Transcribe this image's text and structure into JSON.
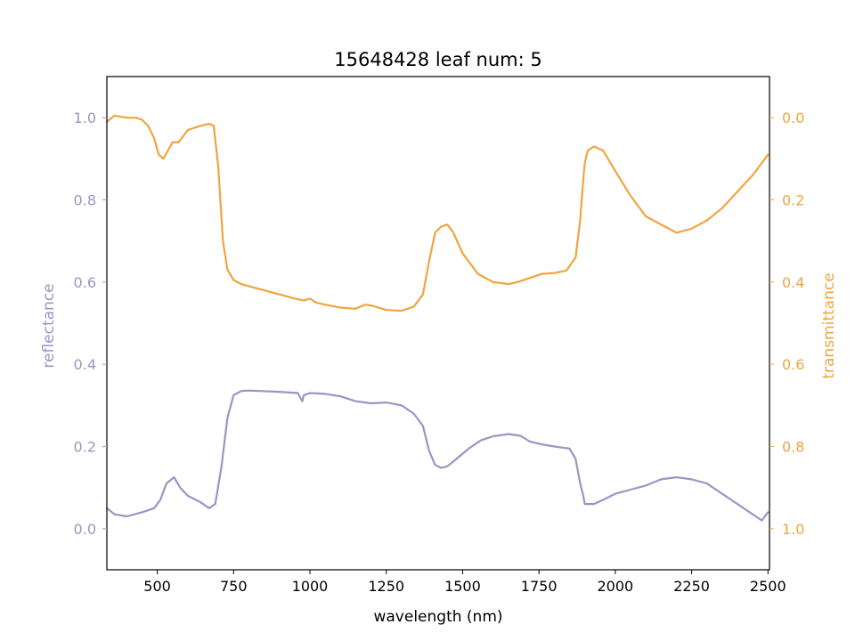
{
  "chart_data": {
    "type": "line",
    "title": "15648428 leaf num: 5",
    "xlabel": "wavelength (nm)",
    "ylabel_left": "reflectance",
    "ylabel_right": "transmittance",
    "xlim": [
      335,
      2505
    ],
    "ylim_left": [
      -0.1,
      1.1
    ],
    "ylim_right": [
      1.1,
      -0.1
    ],
    "right_axis_inverted": true,
    "grid": false,
    "x_ticks": [
      500,
      750,
      1000,
      1250,
      1500,
      1750,
      2000,
      2250,
      2500
    ],
    "x_tick_labels": [
      "500",
      "750",
      "1000",
      "1250",
      "1500",
      "1750",
      "2000",
      "2250",
      "2500"
    ],
    "y_left_ticks": [
      0.0,
      0.2,
      0.4,
      0.6,
      0.8,
      1.0
    ],
    "y_left_tick_labels": [
      "0.0",
      "0.2",
      "0.4",
      "0.6",
      "0.8",
      "1.0"
    ],
    "y_right_ticks": [
      0.0,
      0.2,
      0.4,
      0.6,
      0.8,
      1.0
    ],
    "y_right_tick_labels": [
      "0.0",
      "0.2",
      "0.4",
      "0.6",
      "0.8",
      "1.0"
    ],
    "colors": {
      "reflectance": "#9b94c6",
      "transmittance": "#f0a43f"
    },
    "series": [
      {
        "axis": "left",
        "x": [
          335,
          360,
          400,
          450,
          490,
          510,
          530,
          555,
          575,
          600,
          640,
          670,
          690,
          710,
          730,
          750,
          775,
          800,
          900,
          960,
          975,
          980,
          1000,
          1050,
          1100,
          1150,
          1200,
          1250,
          1300,
          1340,
          1370,
          1390,
          1410,
          1430,
          1450,
          1480,
          1520,
          1560,
          1600,
          1650,
          1690,
          1720,
          1760,
          1800,
          1850,
          1870,
          1885,
          1895,
          1900,
          1930,
          1960,
          2000,
          2050,
          2100,
          2150,
          2200,
          2250,
          2300,
          2340,
          2380,
          2420,
          2460,
          2480,
          2500
        ],
        "values": [
          0.05,
          0.035,
          0.03,
          0.04,
          0.05,
          0.07,
          0.11,
          0.125,
          0.1,
          0.08,
          0.065,
          0.05,
          0.06,
          0.15,
          0.27,
          0.325,
          0.335,
          0.336,
          0.333,
          0.33,
          0.31,
          0.325,
          0.33,
          0.328,
          0.322,
          0.31,
          0.305,
          0.307,
          0.3,
          0.28,
          0.25,
          0.19,
          0.155,
          0.148,
          0.152,
          0.17,
          0.195,
          0.215,
          0.225,
          0.23,
          0.226,
          0.212,
          0.205,
          0.2,
          0.195,
          0.17,
          0.11,
          0.08,
          0.06,
          0.06,
          0.07,
          0.085,
          0.095,
          0.105,
          0.12,
          0.125,
          0.12,
          0.11,
          0.09,
          0.07,
          0.05,
          0.03,
          0.02,
          0.04
        ]
      },
      {
        "axis": "right",
        "x": [
          335,
          360,
          400,
          430,
          450,
          470,
          490,
          505,
          520,
          535,
          550,
          570,
          600,
          640,
          670,
          685,
          700,
          715,
          730,
          750,
          775,
          800,
          850,
          900,
          950,
          980,
          1000,
          1020,
          1050,
          1100,
          1150,
          1180,
          1200,
          1250,
          1300,
          1340,
          1370,
          1390,
          1410,
          1430,
          1450,
          1470,
          1500,
          1550,
          1600,
          1650,
          1680,
          1720,
          1760,
          1800,
          1840,
          1870,
          1885,
          1895,
          1900,
          1910,
          1930,
          1960,
          2000,
          2050,
          2100,
          2150,
          2200,
          2250,
          2300,
          2350,
          2400,
          2450,
          2480,
          2500
        ],
        "values": [
          0.01,
          -0.005,
          0.0,
          0.0,
          0.005,
          0.02,
          0.05,
          0.09,
          0.1,
          0.08,
          0.06,
          0.06,
          0.03,
          0.02,
          0.015,
          0.02,
          0.12,
          0.3,
          0.37,
          0.395,
          0.405,
          0.41,
          0.42,
          0.43,
          0.44,
          0.445,
          0.44,
          0.45,
          0.455,
          0.462,
          0.465,
          0.455,
          0.457,
          0.468,
          0.47,
          0.46,
          0.43,
          0.35,
          0.28,
          0.265,
          0.26,
          0.28,
          0.33,
          0.38,
          0.4,
          0.405,
          0.4,
          0.39,
          0.38,
          0.378,
          0.372,
          0.34,
          0.25,
          0.15,
          0.11,
          0.08,
          0.07,
          0.08,
          0.13,
          0.19,
          0.24,
          0.26,
          0.28,
          0.27,
          0.25,
          0.22,
          0.18,
          0.14,
          0.11,
          0.09
        ]
      }
    ]
  }
}
